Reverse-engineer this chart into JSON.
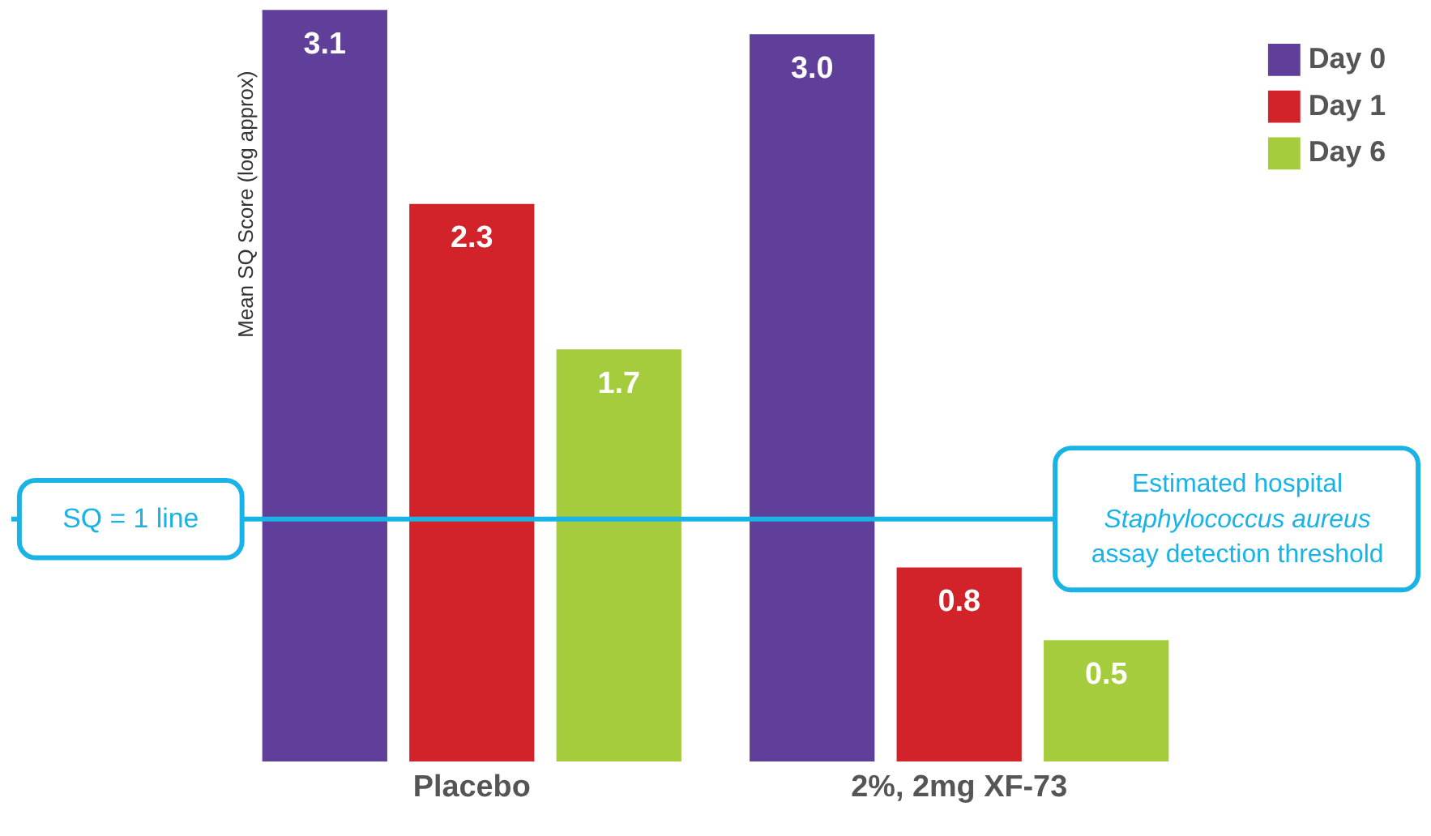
{
  "chart_data": {
    "type": "bar",
    "ylabel": "Mean SQ Score (log approx)",
    "categories": [
      "Placebo",
      "2%, 2mg XF-73"
    ],
    "series": [
      {
        "name": "Day 0",
        "color": "#5f3f99",
        "values": [
          3.1,
          3.0
        ],
        "value_labels": [
          "3.1",
          "3.0"
        ]
      },
      {
        "name": "Day 1",
        "color": "#d2232a",
        "values": [
          2.3,
          0.8
        ],
        "value_labels": [
          "2.3",
          "0.8"
        ]
      },
      {
        "name": "Day 6",
        "color": "#a4cc3c",
        "values": [
          1.7,
          0.5
        ],
        "value_labels": [
          "1.7",
          "0.5"
        ]
      }
    ],
    "legend": "top right",
    "grid": false,
    "tick_labels": "x",
    "ref_lines": [
      {
        "axis": "y",
        "value": 1,
        "label": "SQ = 1 line",
        "color": "#1ab3e6"
      }
    ],
    "annotations": [
      {
        "text": "Estimated hospital\nStaphylococcus aureus\nassay detection threshold",
        "y": 1
      }
    ]
  }
}
